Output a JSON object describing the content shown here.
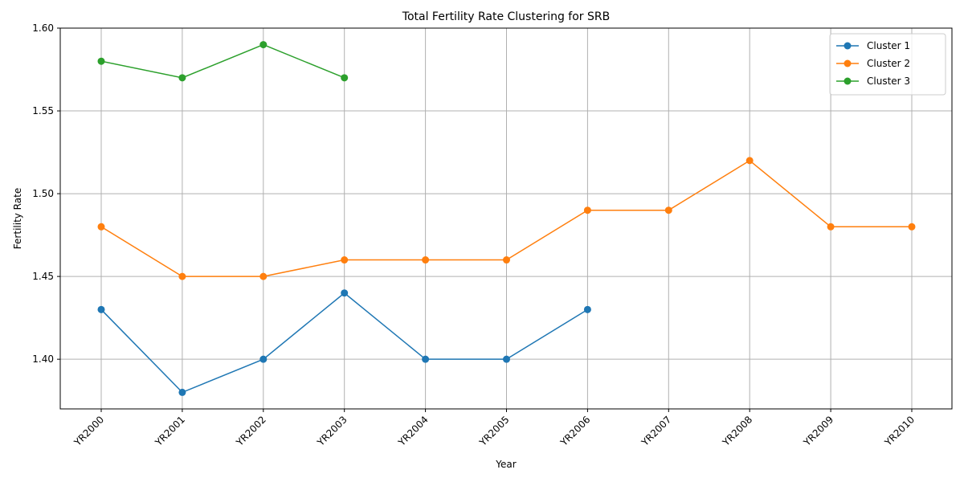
{
  "chart_data": {
    "type": "line",
    "title": "Total Fertility Rate Clustering for SRB",
    "xlabel": "Year",
    "ylabel": "Fertility Rate",
    "categories": [
      "YR2000",
      "YR2001",
      "YR2002",
      "YR2003",
      "YR2004",
      "YR2005",
      "YR2006",
      "YR2007",
      "YR2008",
      "YR2009",
      "YR2010"
    ],
    "ylim": [
      1.37,
      1.6
    ],
    "yticks": [
      "1.40",
      "1.45",
      "1.50",
      "1.55",
      "1.60"
    ],
    "grid": true,
    "legend_position": "top-right",
    "series": [
      {
        "name": "Cluster 1",
        "color": "#1f77b4",
        "x": [
          "YR2000",
          "YR2001",
          "YR2002",
          "YR2003",
          "YR2004",
          "YR2005",
          "YR2006"
        ],
        "values": [
          1.43,
          1.38,
          1.4,
          1.44,
          1.4,
          1.4,
          1.43
        ]
      },
      {
        "name": "Cluster 2",
        "color": "#ff7f0e",
        "x": [
          "YR2000",
          "YR2001",
          "YR2002",
          "YR2003",
          "YR2004",
          "YR2005",
          "YR2006",
          "YR2007",
          "YR2008",
          "YR2009",
          "YR2010"
        ],
        "values": [
          1.48,
          1.45,
          1.45,
          1.46,
          1.46,
          1.46,
          1.49,
          1.49,
          1.52,
          1.48,
          1.48
        ]
      },
      {
        "name": "Cluster 3",
        "color": "#2ca02c",
        "x": [
          "YR2000",
          "YR2001",
          "YR2002",
          "YR2003"
        ],
        "values": [
          1.58,
          1.57,
          1.59,
          1.57
        ]
      }
    ]
  }
}
